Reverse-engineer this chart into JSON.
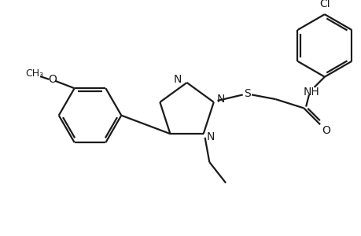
{
  "bg_color": "#ffffff",
  "line_color": "#1a1a1a",
  "line_width": 1.6,
  "font_size": 10,
  "figsize": [
    4.6,
    3.0
  ],
  "dpi": 100,
  "xlim": [
    0,
    460
  ],
  "ylim": [
    0,
    300
  ]
}
